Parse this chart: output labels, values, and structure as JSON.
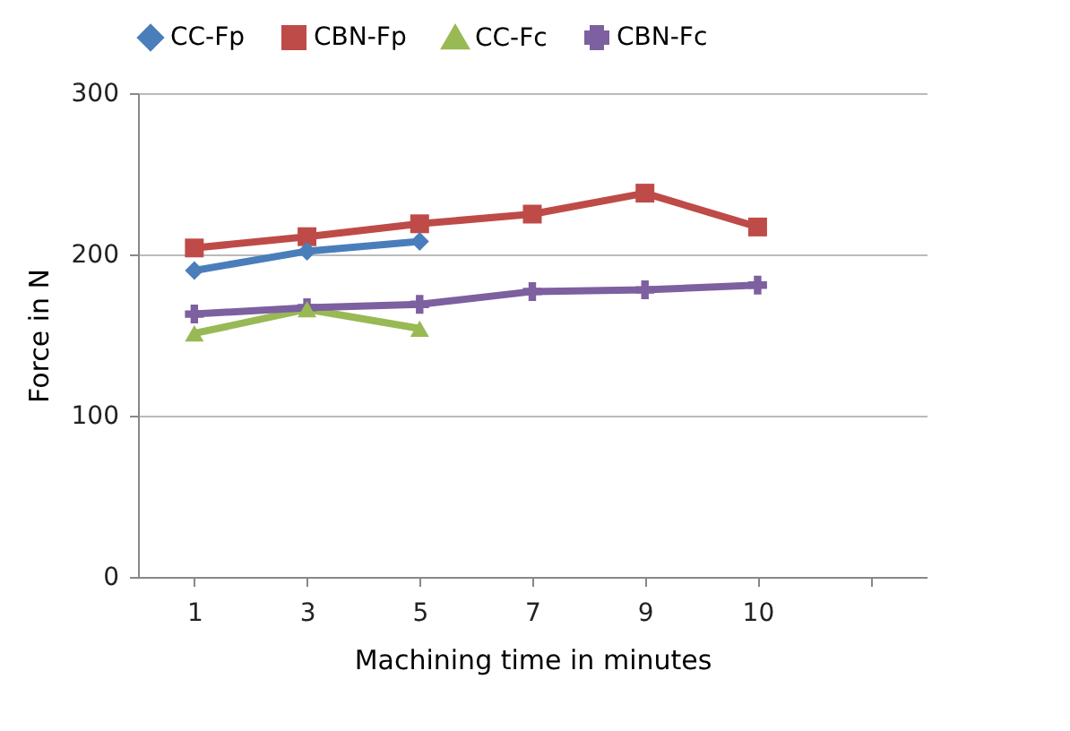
{
  "chart_data": {
    "type": "line",
    "xlabel": "Machining time in minutes",
    "ylabel": "Force in N",
    "categories": [
      "1",
      "3",
      "5",
      "7",
      "9",
      "10",
      null
    ],
    "series": [
      {
        "name": "CC-Fp",
        "color": "#4a7ebb",
        "marker": "diamond",
        "values": [
          190,
          202,
          208,
          null,
          null,
          null,
          null
        ]
      },
      {
        "name": "CBN-Fp",
        "color": "#be4b48",
        "marker": "square",
        "values": [
          204,
          211,
          219,
          225,
          238,
          217,
          null
        ]
      },
      {
        "name": "CC-Fc",
        "color": "#98b954",
        "marker": "triangle",
        "values": [
          151,
          166,
          154,
          null,
          null,
          null,
          null
        ]
      },
      {
        "name": "CBN-Fc",
        "color": "#7d60a0",
        "marker": "cross",
        "values": [
          163,
          167,
          169,
          177,
          178,
          181,
          null
        ]
      }
    ],
    "ylim": [
      0,
      300
    ],
    "yticks": [
      0,
      100,
      200,
      300
    ],
    "grid": "y",
    "legend": "top"
  }
}
